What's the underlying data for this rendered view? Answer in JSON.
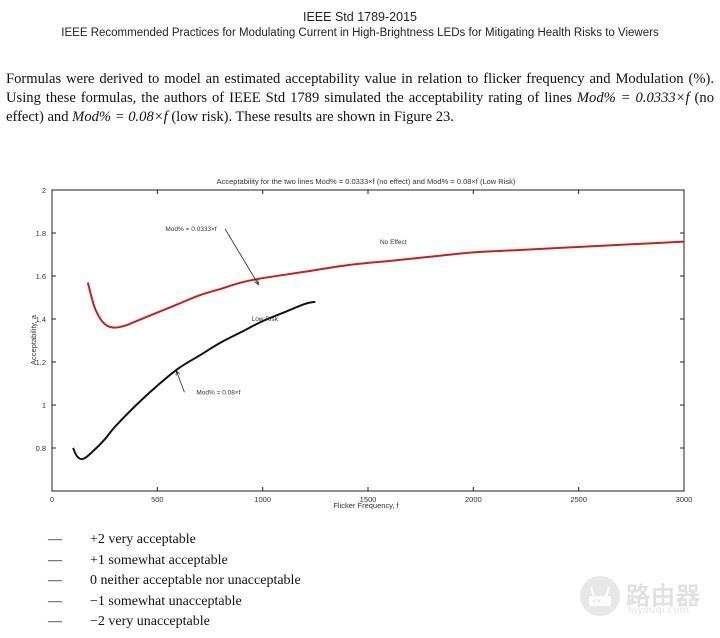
{
  "header": {
    "standard": "IEEE Std 1789-2015",
    "title": "IEEE Recommended Practices for Modulating Current in High-Brightness LEDs for Mitigating Health Risks to Viewers"
  },
  "paragraph": {
    "p1": "Formulas were derived to model an estimated acceptability value in relation to flicker frequency and Modulation (%). Using these formulas, the authors of IEEE Std 1789 simulated the acceptability rating of lines ",
    "formula1": "Mod% = 0.0333×f",
    "p2": " (no effect) and ",
    "formula2": "Mod% = 0.08×f",
    "p3": " (low risk). These results are shown in Figure 23."
  },
  "chart_data": {
    "type": "line",
    "title": "Acceptability for the two lines Mod% = 0.0333×f (no effect)    and Mod% = 0.08×f (Low Risk)",
    "xlabel": "Flicker Frequency, f",
    "ylabel": "Acceptability, a",
    "xlim": [
      0,
      3000
    ],
    "ylim": [
      0.6,
      2
    ],
    "xticks": [
      0,
      500,
      1000,
      1500,
      2000,
      2500,
      3000
    ],
    "yticks": [
      0.8,
      1,
      1.2,
      1.4,
      1.6,
      1.8,
      2
    ],
    "ytick_labels": [
      "0.8",
      "1",
      "1.2",
      "1.4",
      "1.6",
      "1.8",
      "2"
    ],
    "series": [
      {
        "name": "No Effect",
        "color": "#c81e1e",
        "x": [
          170,
          200,
          230,
          260,
          300,
          350,
          400,
          500,
          600,
          700,
          800,
          900,
          1000,
          1200,
          1400,
          1600,
          1800,
          2000,
          2200,
          2400,
          2600,
          2800,
          3000
        ],
        "y": [
          1.57,
          1.46,
          1.4,
          1.37,
          1.36,
          1.37,
          1.39,
          1.43,
          1.47,
          1.51,
          1.54,
          1.57,
          1.59,
          1.62,
          1.65,
          1.67,
          1.69,
          1.71,
          1.72,
          1.73,
          1.74,
          1.75,
          1.76
        ]
      },
      {
        "name": "Low Risk",
        "color": "#111111",
        "x": [
          100,
          120,
          150,
          200,
          250,
          300,
          400,
          500,
          600,
          700,
          800,
          900,
          1000,
          1100,
          1200,
          1250
        ],
        "y": [
          0.8,
          0.76,
          0.75,
          0.79,
          0.84,
          0.9,
          1.0,
          1.09,
          1.17,
          1.23,
          1.29,
          1.34,
          1.39,
          1.43,
          1.47,
          1.48
        ]
      }
    ],
    "annotations": [
      {
        "text": "Mod% = 0.0333×f",
        "x": 660,
        "y": 1.81,
        "arrow_to_x": 980,
        "arrow_to_y": 1.56
      },
      {
        "text": "No Effect",
        "x": 1620,
        "y": 1.75
      },
      {
        "text": "Low Risk",
        "x": 1010,
        "y": 1.39
      },
      {
        "text": "Mod% = 0.08×f",
        "x": 790,
        "y": 1.05,
        "arrow_to_x": 590,
        "arrow_to_y": 1.16
      }
    ]
  },
  "legend": [
    {
      "marker": "—",
      "label": "+2 very acceptable"
    },
    {
      "marker": "—",
      "label": "+1 somewhat acceptable"
    },
    {
      "marker": "—",
      "label": "0 neither acceptable nor unacceptable"
    },
    {
      "marker": "—",
      "label": "−1 somewhat unacceptable"
    },
    {
      "marker": "—",
      "label": "−2 very unacceptable"
    }
  ],
  "watermark": {
    "title": "路由器",
    "url": "luyouqi.com",
    "icon": "router-icon"
  }
}
